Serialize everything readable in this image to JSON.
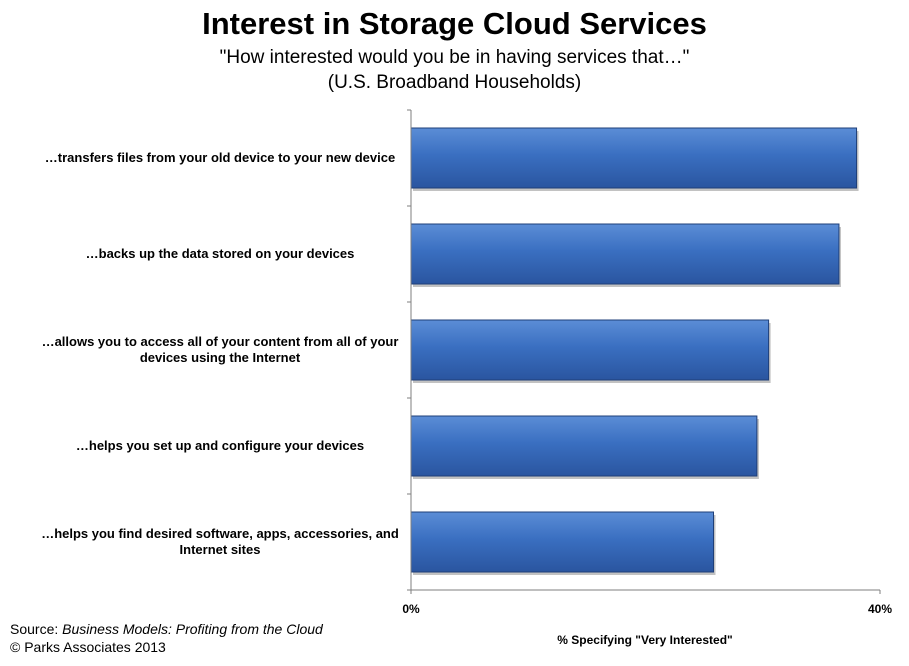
{
  "header": {
    "title": "Interest in Storage Cloud Services",
    "subtitle_line1": "\"How interested would you be in having services that…\"",
    "subtitle_line2": "(U.S. Broadband Households)"
  },
  "footer": {
    "source_prefix": "Source: ",
    "source_title": "Business Models: Profiting from the Cloud",
    "copyright": "© Parks Associates 2013"
  },
  "colors": {
    "bar": "#3A6FC1",
    "bar_light": "#5B8DD6",
    "bar_dark": "#2A55A0",
    "bar_edge": "#1F3F78"
  },
  "chart_data": {
    "type": "bar",
    "orientation": "horizontal",
    "categories": [
      "…transfers files from your old device to your new device",
      "…backs up the data stored on your devices",
      "…allows you to access all of your content from all of your devices using the Internet",
      "…helps you set up and configure your devices",
      "…helps you find desired software, apps, accessories, and Internet sites"
    ],
    "category_lines": [
      [
        "…transfers files from your old device to your new device"
      ],
      [
        "…backs up the data stored on your devices"
      ],
      [
        "…allows you to access all of your content from all of your",
        "devices using the Internet"
      ],
      [
        "…helps you set up and configure your devices"
      ],
      [
        "…helps you find desired software, apps, accessories, and",
        "Internet sites"
      ]
    ],
    "values": [
      38,
      36.5,
      30.5,
      29.5,
      25.8
    ],
    "xlim": [
      0,
      40
    ],
    "tick_labels": [
      "0%",
      "40%"
    ],
    "xlabel": "% Specifying \"Very Interested\"",
    "grid": false,
    "legend": "none"
  }
}
